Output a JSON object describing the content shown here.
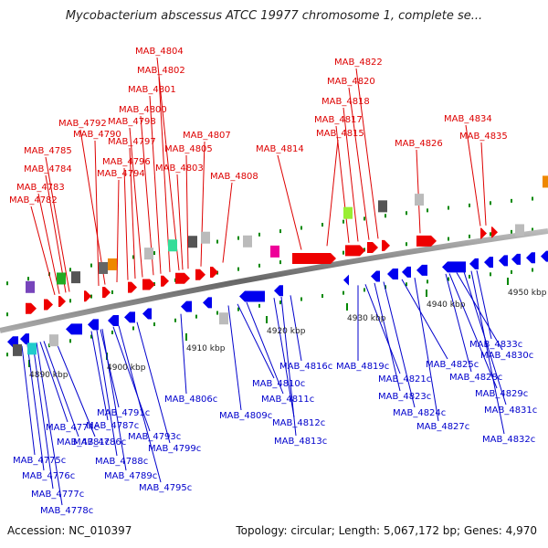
{
  "title": "Mycobacterium abscessus ATCC 19977 chromosome 1, complete se...",
  "accession_text": "Accession: NC_010397",
  "summary_text": "Topology: circular; Length: 5,067,172 bp; Genes: 4,970",
  "colors": {
    "forward_label": "#dd0000",
    "reverse_label": "#0000cc",
    "backbone": "#888888",
    "tick": "#008800"
  },
  "ticks": [
    "4890 kbp",
    "4900 kbp",
    "4910 kbp",
    "4920 kbp",
    "4930 kbp",
    "4940 kbp",
    "4950 kbp"
  ],
  "forward_labels": [
    "MAB_4782",
    "MAB_4783",
    "MAB_4784",
    "MAB_4785",
    "MAB_4790",
    "MAB_4792",
    "MAB_4794",
    "MAB_4796",
    "MAB_4797",
    "MAB_4798",
    "MAB_4800",
    "MAB_4801",
    "MAB_4802",
    "MAB_4804",
    "MAB_4803",
    "MAB_4805",
    "MAB_4807",
    "MAB_4808",
    "MAB_4814",
    "MAB_4815",
    "MAB_4817",
    "MAB_4818",
    "MAB_4820",
    "MAB_4822",
    "MAB_4826",
    "MAB_4834",
    "MAB_4835"
  ],
  "reverse_labels": [
    "MAB_4774c",
    "MAB_4775c",
    "MAB_4776c",
    "MAB_4777c",
    "MAB_4778c",
    "MAB_4781c",
    "MAB_4786c",
    "MAB_4787c",
    "MAB_4788c",
    "MAB_4789c",
    "MAB_4791c",
    "MAB_4793c",
    "MAB_4795c",
    "MAB_4799c",
    "MAB_4806c",
    "MAB_4809c",
    "MAB_4810c",
    "MAB_4811c",
    "MAB_4812c",
    "MAB_4813c",
    "MAB_4816c",
    "MAB_4819c",
    "MAB_4821c",
    "MAB_4823c",
    "MAB_4824c",
    "MAB_4825c",
    "MAB_4827c",
    "MAB_4828c",
    "MAB_4829c",
    "MAB_4830c",
    "MAB_4831c",
    "MAB_4832c",
    "MAB_4833c"
  ]
}
